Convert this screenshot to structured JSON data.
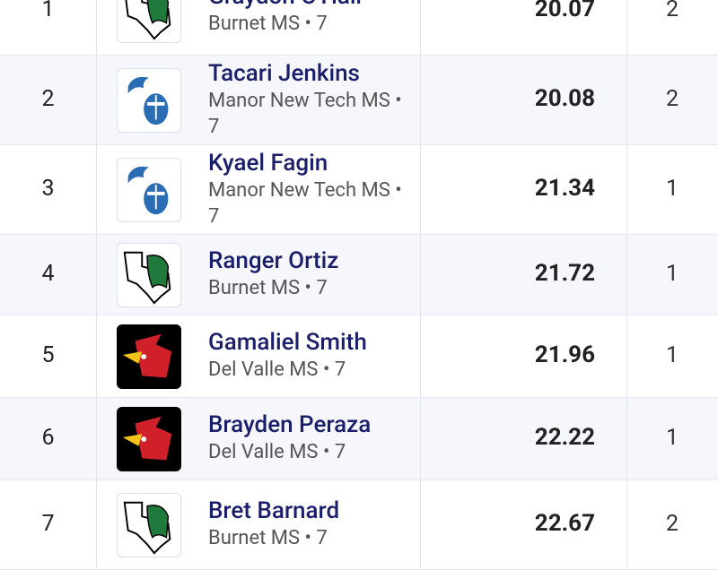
{
  "results": [
    {
      "place": "1",
      "name": "Graydon O'Hair",
      "school": "Burnet MS • 7",
      "time": "20.07",
      "heat": "2",
      "logo": "burnet-texas-logo"
    },
    {
      "place": "2",
      "name": "Tacari Jenkins",
      "school": "Manor New Tech MS • 7",
      "time": "20.08",
      "heat": "2",
      "logo": "knight-helmet-logo"
    },
    {
      "place": "3",
      "name": "Kyael Fagin",
      "school": "Manor New Tech MS • 7",
      "time": "21.34",
      "heat": "1",
      "logo": "knight-helmet-logo"
    },
    {
      "place": "4",
      "name": "Ranger Ortiz",
      "school": "Burnet MS • 7",
      "time": "21.72",
      "heat": "1",
      "logo": "burnet-texas-logo"
    },
    {
      "place": "5",
      "name": "Gamaliel Smith",
      "school": "Del Valle MS • 7",
      "time": "21.96",
      "heat": "1",
      "logo": "cardinal-logo"
    },
    {
      "place": "6",
      "name": "Brayden Peraza",
      "school": "Del Valle MS • 7",
      "time": "22.22",
      "heat": "1",
      "logo": "cardinal-logo"
    },
    {
      "place": "7",
      "name": "Bret Barnard",
      "school": "Burnet MS • 7",
      "time": "22.67",
      "heat": "2",
      "logo": "burnet-texas-logo"
    }
  ],
  "colors": {
    "name": "#1b1f6b",
    "alt_row": "#f5f7fc",
    "burnet_green": "#1f7a3c",
    "knight_blue": "#2a6db5",
    "cardinal_red": "#d0202a"
  }
}
